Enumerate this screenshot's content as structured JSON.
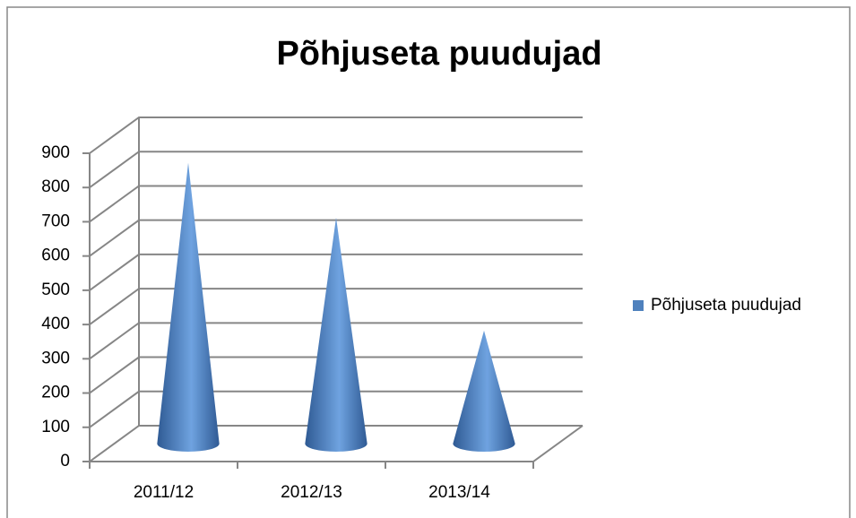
{
  "chart_data": {
    "type": "cone",
    "title": "Põhjuseta puudujad",
    "categories": [
      "2011/12",
      "2012/13",
      "2013/14"
    ],
    "series": [
      {
        "name": "Põhjuseta puudujad",
        "color": "#4f81bd",
        "values": [
          820,
          660,
          330
        ]
      }
    ],
    "ylim": [
      0,
      900
    ],
    "yticks": [
      0,
      100,
      200,
      300,
      400,
      500,
      600,
      700,
      800,
      900
    ],
    "grid": true,
    "legend": "right"
  }
}
